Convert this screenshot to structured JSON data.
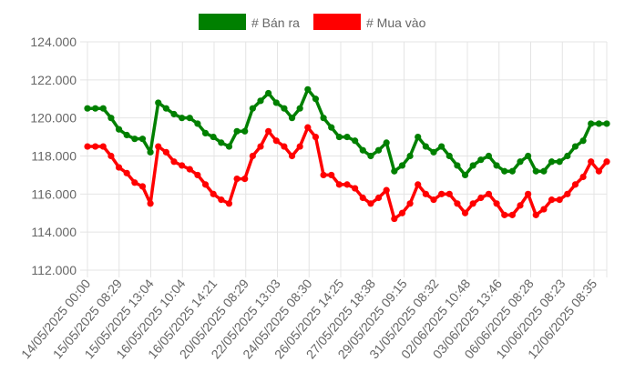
{
  "chart_data": {
    "type": "line",
    "title": "",
    "xlabel": "",
    "ylabel": "",
    "ylim": [
      112000,
      124000
    ],
    "y_ticks": [
      "124.000",
      "122.000",
      "120.000",
      "118.000",
      "116.000",
      "114.000",
      "112.000"
    ],
    "y_tick_values": [
      124000,
      122000,
      120000,
      118000,
      116000,
      114000,
      112000
    ],
    "grid": true,
    "legend_position": "top-center",
    "x_tick_labels": [
      "14/05/2025 00:00",
      "15/05/2025 08:29",
      "15/05/2025 13:04",
      "16/05/2025 10:04",
      "16/05/2025 14:21",
      "20/05/2025 08:29",
      "22/05/2025 13:03",
      "24/05/2025 08:30",
      "26/05/2025 14:25",
      "27/05/2025 18:38",
      "29/05/2025 09:15",
      "31/05/2025 08:32",
      "02/06/2025 10:48",
      "03/06/2025 13:46",
      "06/06/2025 08:28",
      "10/06/2025 08:23",
      "12/06/2025 08:35"
    ],
    "series": [
      {
        "name": "# Bán ra",
        "color": "#008000",
        "values": [
          120500,
          120500,
          120500,
          120000,
          119400,
          119100,
          118900,
          118900,
          118200,
          120800,
          120500,
          120200,
          120000,
          120000,
          119700,
          119200,
          119000,
          118700,
          118500,
          119300,
          119300,
          120500,
          120900,
          121300,
          120800,
          120500,
          120000,
          120500,
          121500,
          121000,
          120000,
          119500,
          119000,
          119000,
          118800,
          118300,
          118000,
          118300,
          118700,
          117200,
          117500,
          118000,
          119000,
          118500,
          118200,
          118500,
          118000,
          117500,
          117000,
          117500,
          117800,
          118000,
          117500,
          117200,
          117200,
          117700,
          118000,
          117200,
          117200,
          117700,
          117700,
          118000,
          118500,
          118800,
          119700,
          119700,
          119700
        ]
      },
      {
        "name": "# Mua vào",
        "color": "#ff0000",
        "values": [
          118500,
          118500,
          118500,
          118000,
          117400,
          117100,
          116600,
          116400,
          115500,
          118500,
          118200,
          117700,
          117500,
          117300,
          117000,
          116500,
          116000,
          115700,
          115500,
          116800,
          116800,
          118000,
          118500,
          119300,
          118800,
          118500,
          118000,
          118500,
          119500,
          119000,
          117000,
          117000,
          116500,
          116500,
          116300,
          115800,
          115500,
          115800,
          116200,
          114700,
          115000,
          115500,
          116500,
          116000,
          115700,
          116000,
          116000,
          115500,
          115000,
          115500,
          115800,
          116000,
          115500,
          114900,
          114900,
          115400,
          116000,
          114900,
          115200,
          115700,
          115700,
          116000,
          116500,
          116900,
          117700,
          117200,
          117700
        ]
      }
    ]
  }
}
